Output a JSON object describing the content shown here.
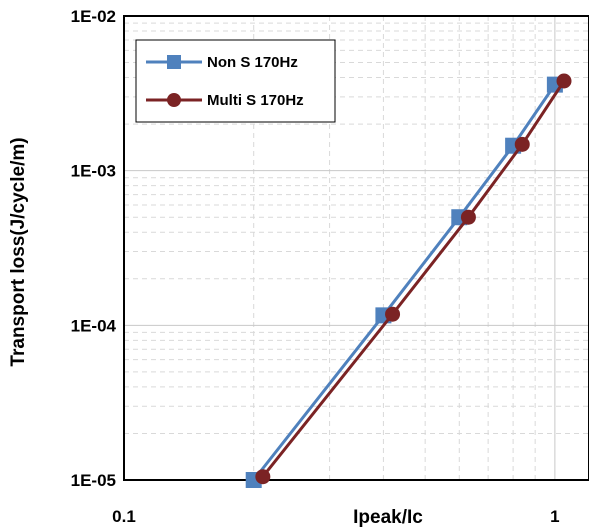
{
  "chart_data": {
    "type": "line",
    "xlabel": "Ipeak/Ic",
    "ylabel": "Transport loss(J/cycle/m)",
    "x_scale": "log",
    "y_scale": "log",
    "xlim": [
      0.1,
      1.2
    ],
    "ylim": [
      1e-05,
      0.01
    ],
    "x_ticks": [
      {
        "value": 0.1,
        "label": "0.1"
      },
      {
        "value": 1,
        "label": "1"
      }
    ],
    "y_ticks": [
      {
        "value": 1e-05,
        "label": "1E-05"
      },
      {
        "value": 0.0001,
        "label": "1E-04"
      },
      {
        "value": 0.001,
        "label": "1E-03"
      },
      {
        "value": 0.01,
        "label": "1E-02"
      }
    ],
    "grid": true,
    "legend": "top-left",
    "series": [
      {
        "name": "Non S 170Hz",
        "color": "#4F81BD",
        "marker": "square",
        "x": [
          0.2,
          0.4,
          0.6,
          0.8,
          1.0
        ],
        "y": [
          1e-05,
          0.000116,
          0.0005,
          0.00145,
          0.0036
        ]
      },
      {
        "name": "Multi S 170Hz",
        "color": "#7B2324",
        "marker": "circle",
        "x": [
          0.21,
          0.42,
          0.63,
          0.84,
          1.05
        ],
        "y": [
          1.05e-05,
          0.000118,
          0.0005,
          0.00148,
          0.0038
        ]
      }
    ]
  }
}
